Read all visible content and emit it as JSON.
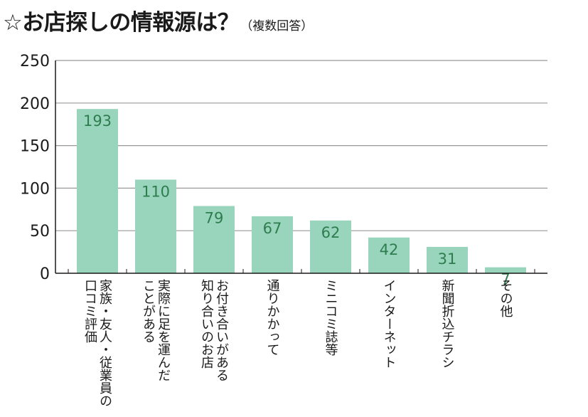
{
  "title": {
    "main": "☆お店探しの情報源は？",
    "sub": "（複数回答）"
  },
  "colors": {
    "bar": "#99d4bc",
    "data_label": "#2e7d4f",
    "grid": "#999999",
    "axis": "#1a1a1a"
  },
  "chart_data": {
    "type": "bar",
    "categories": [
      [
        "家族・友人・従業員の",
        "口コミ評価"
      ],
      [
        "実際に足を運んだ",
        "ことがある"
      ],
      [
        "お付き合いがある",
        "知り合いのお店"
      ],
      [
        "通りかかって"
      ],
      [
        "ミニコミ誌等"
      ],
      [
        "インターネット"
      ],
      [
        "新聞折込チラシ"
      ],
      [
        "その他"
      ]
    ],
    "values": [
      193,
      110,
      79,
      67,
      62,
      42,
      31,
      7
    ],
    "ylim": [
      0,
      250
    ],
    "yticks": [
      0,
      50,
      100,
      150,
      200,
      250
    ],
    "grid": true,
    "data_labels": true
  }
}
